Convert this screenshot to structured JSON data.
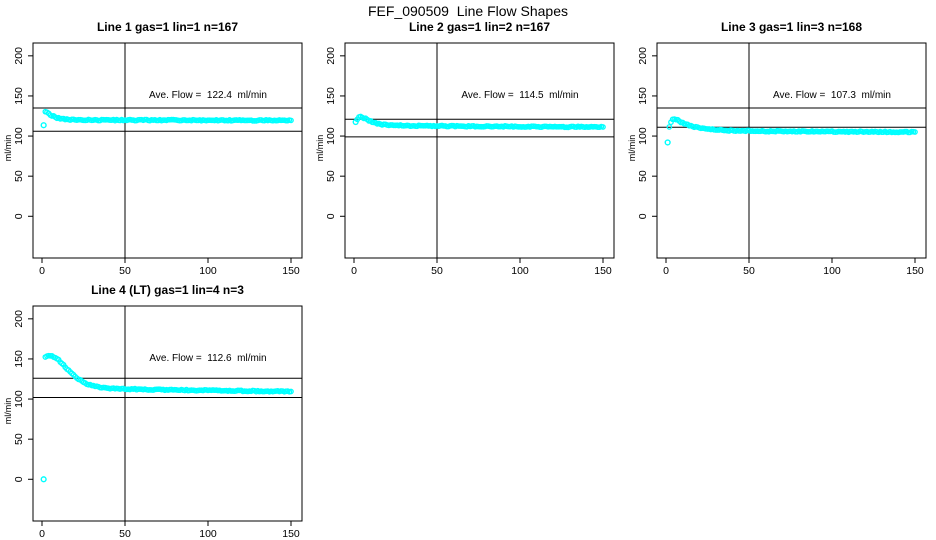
{
  "header": {
    "title": "FEF_090509  Line Flow Shapes"
  },
  "colors": {
    "points": "#00ffff",
    "axis": "#000000",
    "background": "#ffffff"
  },
  "chart_data": [
    {
      "type": "scatter",
      "title": "Line 1 gas=1 lin=1 n=167",
      "annotation": "Ave. Flow =  122.4  ml/min",
      "ave_flow_ml_min": 122.4,
      "ylabel": "ml/min",
      "x_ticks": [
        0,
        50,
        100,
        150
      ],
      "y_ticks": [
        0,
        50,
        100,
        150,
        200
      ],
      "xlim": [
        -5.5,
        156.5
      ],
      "ylim": [
        -52,
        216
      ],
      "vline_x": 50,
      "hlines": [
        135,
        106
      ],
      "outliers": [
        [
          1,
          113.5
        ]
      ],
      "curve": [
        [
          2,
          131
        ],
        [
          3,
          129.5
        ],
        [
          4,
          128
        ],
        [
          5,
          126.5
        ],
        [
          6,
          125.5
        ],
        [
          8,
          123.5
        ],
        [
          10,
          122.3
        ],
        [
          13,
          121.2
        ],
        [
          16,
          120.6
        ],
        [
          20,
          120.2
        ],
        [
          30,
          120
        ],
        [
          50,
          119.9
        ],
        [
          80,
          119.8
        ],
        [
          120,
          119.6
        ],
        [
          150,
          119.5
        ]
      ]
    },
    {
      "type": "scatter",
      "title": "Line 2 gas=1 lin=2 n=167",
      "annotation": "Ave. Flow =  114.5  ml/min",
      "ave_flow_ml_min": 114.5,
      "ylabel": "ml/min",
      "x_ticks": [
        0,
        50,
        100,
        150
      ],
      "y_ticks": [
        0,
        50,
        100,
        150,
        200
      ],
      "xlim": [
        -5.5,
        156.5
      ],
      "ylim": [
        -52,
        216
      ],
      "vline_x": 50,
      "hlines": [
        121,
        99
      ],
      "outliers": [
        [
          1,
          117.5
        ]
      ],
      "curve": [
        [
          2,
          121.5
        ],
        [
          3,
          123.5
        ],
        [
          4,
          124
        ],
        [
          5,
          123.5
        ],
        [
          6,
          122.5
        ],
        [
          8,
          120.5
        ],
        [
          10,
          118.5
        ],
        [
          13,
          116
        ],
        [
          16,
          114.8
        ],
        [
          20,
          113.8
        ],
        [
          25,
          113.3
        ],
        [
          35,
          112.9
        ],
        [
          60,
          112.4
        ],
        [
          100,
          111.9
        ],
        [
          150,
          111.3
        ]
      ]
    },
    {
      "type": "scatter",
      "title": "Line 3 gas=1 lin=3 n=168",
      "annotation": "Ave. Flow =  107.3  ml/min",
      "ave_flow_ml_min": 107.3,
      "ylabel": "ml/min",
      "x_ticks": [
        0,
        50,
        100,
        150
      ],
      "y_ticks": [
        0,
        50,
        100,
        150,
        200
      ],
      "xlim": [
        -5.5,
        156.5
      ],
      "ylim": [
        -52,
        216
      ],
      "vline_x": 50,
      "hlines": [
        135,
        111
      ],
      "outliers": [
        [
          1,
          92
        ]
      ],
      "curve": [
        [
          2,
          112
        ],
        [
          3,
          117
        ],
        [
          4,
          120.5
        ],
        [
          5,
          121.5
        ],
        [
          6,
          121
        ],
        [
          8,
          118.5
        ],
        [
          10,
          116.5
        ],
        [
          13,
          114
        ],
        [
          16,
          112
        ],
        [
          20,
          110.3
        ],
        [
          25,
          108.8
        ],
        [
          32,
          107.5
        ],
        [
          40,
          106.8
        ],
        [
          55,
          106.2
        ],
        [
          80,
          105.8
        ],
        [
          115,
          105.4
        ],
        [
          150,
          105.1
        ]
      ]
    },
    {
      "type": "scatter",
      "title": "Line 4 (LT) gas=1 lin=4 n=3",
      "annotation": "Ave. Flow =  112.6  ml/min",
      "ave_flow_ml_min": 112.6,
      "ylabel": "ml/min",
      "x_ticks": [
        0,
        50,
        100,
        150
      ],
      "y_ticks": [
        0,
        50,
        100,
        150,
        200
      ],
      "xlim": [
        -5.5,
        156.5
      ],
      "ylim": [
        -52,
        216
      ],
      "vline_x": 50,
      "hlines": [
        126,
        102
      ],
      "outliers": [
        [
          1,
          0
        ]
      ],
      "curve": [
        [
          2,
          153
        ],
        [
          4,
          153.8
        ],
        [
          6,
          153.5
        ],
        [
          8,
          151.5
        ],
        [
          10,
          148.5
        ],
        [
          12,
          144.5
        ],
        [
          14,
          140
        ],
        [
          16,
          135.5
        ],
        [
          18,
          131.5
        ],
        [
          20,
          128
        ],
        [
          22,
          125
        ],
        [
          24,
          122.3
        ],
        [
          26,
          120
        ],
        [
          28,
          118.3
        ],
        [
          30,
          116.8
        ],
        [
          33,
          115.3
        ],
        [
          36,
          114.3
        ],
        [
          40,
          113.5
        ],
        [
          45,
          113
        ],
        [
          50,
          112.7
        ],
        [
          60,
          112.2
        ],
        [
          75,
          111.5
        ],
        [
          90,
          111
        ],
        [
          110,
          110.4
        ],
        [
          130,
          109.9
        ],
        [
          150,
          109.4
        ]
      ]
    }
  ]
}
